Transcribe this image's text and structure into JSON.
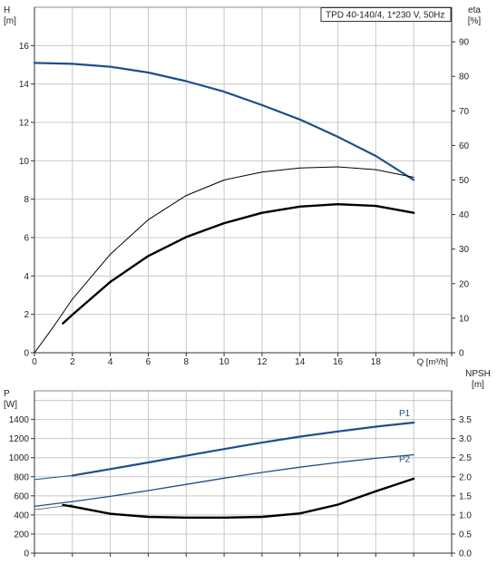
{
  "chart_data": [
    {
      "type": "line",
      "title": "TPD 40-140/4, 1*230 V, 50Hz",
      "xlabel": "Q [m³/h]",
      "ylabel_left": [
        "H",
        "[m]"
      ],
      "ylabel_right": [
        "eta",
        "[%]"
      ],
      "xlim": [
        0,
        22
      ],
      "ylim_left": [
        0,
        18
      ],
      "ylim_right": [
        0,
        100
      ],
      "grid": true,
      "x_ticks": [
        "0",
        "2",
        "4",
        "6",
        "8",
        "10",
        "12",
        "14",
        "16",
        "18"
      ],
      "y_left_ticks": [
        "0",
        "2",
        "4",
        "6",
        "8",
        "10",
        "12",
        "14",
        "16"
      ],
      "y_right_ticks": [
        "0",
        "10",
        "20",
        "30",
        "40",
        "50",
        "60",
        "70",
        "80",
        "90"
      ],
      "series": [
        {
          "axis": "left",
          "color": "#1f4e8c",
          "width": 2.2,
          "x": [
            0,
            2,
            4,
            6,
            8,
            10,
            12,
            14,
            16,
            18,
            20
          ],
          "y": [
            15.1,
            15.05,
            14.9,
            14.6,
            14.15,
            13.6,
            12.9,
            12.15,
            11.25,
            10.25,
            9.0
          ]
        },
        {
          "axis": "right",
          "color": "#000000",
          "width": 1.0,
          "x": [
            0,
            1,
            2,
            4,
            6,
            8,
            10,
            12,
            14,
            16,
            18,
            20
          ],
          "y": [
            0,
            7.5,
            15.5,
            28.5,
            38.5,
            45.5,
            50,
            52.3,
            53.5,
            53.8,
            53,
            50.8
          ]
        },
        {
          "axis": "right",
          "color": "#000000",
          "width": 2.4,
          "x": [
            1.5,
            2,
            4,
            6,
            8,
            10,
            12,
            14,
            16,
            18,
            20
          ],
          "y": [
            8.5,
            11.0,
            20.5,
            28,
            33.5,
            37.5,
            40.5,
            42.3,
            43,
            42.5,
            40.5
          ]
        }
      ]
    },
    {
      "type": "line",
      "title": "",
      "xlabel": "",
      "ylabel_left": [
        "P",
        "[W]"
      ],
      "ylabel_right": [
        "NPSH",
        "[m]"
      ],
      "xlim": [
        0,
        22
      ],
      "ylim_left": [
        0,
        1700
      ],
      "ylim_right": [
        0,
        4.25
      ],
      "grid": true,
      "y_left_ticks": [
        "0",
        "200",
        "400",
        "600",
        "800",
        "1000",
        "1200",
        "1400"
      ],
      "y_right_ticks": [
        "0.0",
        "0.5",
        "1.0",
        "1.5",
        "2.0",
        "2.5",
        "3.0",
        "3.5"
      ],
      "series": [
        {
          "name": "P1",
          "axis": "left",
          "color": "#1f4e8c",
          "width": 2.2,
          "x": [
            2,
            4,
            6,
            8,
            10,
            12,
            14,
            16,
            18,
            20
          ],
          "y": [
            813,
            880,
            950,
            1020,
            1090,
            1158,
            1220,
            1275,
            1325,
            1368
          ]
        },
        {
          "axis": "left",
          "color": "#1f4e8c",
          "width": 1.0,
          "x": [
            0,
            2
          ],
          "y": [
            770,
            813
          ]
        },
        {
          "name": "P2",
          "axis": "left",
          "color": "#1f4e8c",
          "width": 1.3,
          "x": [
            0,
            2,
            4,
            6,
            8,
            10,
            12,
            14,
            16,
            18,
            20
          ],
          "y": [
            490,
            540,
            595,
            655,
            720,
            785,
            845,
            900,
            950,
            993,
            1030
          ]
        },
        {
          "axis": "left",
          "color": "#777777",
          "width": 1.0,
          "x": [
            0,
            2
          ],
          "y": [
            455,
            505
          ]
        },
        {
          "axis": "right",
          "color": "#000000",
          "width": 2.4,
          "x": [
            1.5,
            2,
            4,
            6,
            8,
            10,
            12,
            14,
            16,
            18,
            20
          ],
          "y": [
            1.26,
            1.22,
            1.03,
            0.95,
            0.93,
            0.93,
            0.95,
            1.04,
            1.27,
            1.62,
            1.95
          ]
        }
      ]
    }
  ]
}
